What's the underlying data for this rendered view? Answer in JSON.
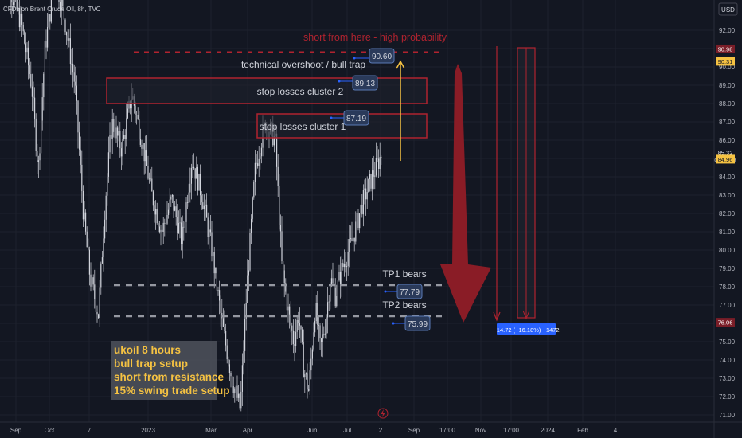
{
  "header": {
    "symbol_text": "CFDs on Brent Crude Oil, 8h, TVC",
    "currency": "USD"
  },
  "price_axis": {
    "ticks": [
      "92.00",
      "91.00",
      "90.00",
      "89.00",
      "88.00",
      "87.00",
      "86.00",
      "85.00",
      "84.00",
      "83.00",
      "82.00",
      "81.00",
      "80.00",
      "79.00",
      "78.00",
      "77.00",
      "76.00",
      "75.00",
      "74.00",
      "73.00",
      "72.00",
      "71.00"
    ],
    "tick_values": [
      92,
      91,
      90,
      89,
      88,
      87,
      86,
      85,
      84,
      83,
      82,
      81,
      80,
      79,
      78,
      77,
      76,
      75,
      74,
      73,
      72,
      71
    ],
    "labels": [
      {
        "text": "90.98",
        "value": 90.98,
        "bg": "#7a1e28",
        "fg": "#ffffff"
      },
      {
        "text": "90.31",
        "value": 90.31,
        "bg": "#f5c242",
        "fg": "#131722"
      },
      {
        "text": "85.32",
        "value": 85.32,
        "bg": "#131722",
        "fg": "#d1d4dc",
        "sub": "04:02:38"
      },
      {
        "text": "84.96",
        "value": 84.96,
        "bg": "#f5c242",
        "fg": "#131722"
      },
      {
        "text": "76.06",
        "value": 76.06,
        "bg": "#7a1e28",
        "fg": "#ffffff"
      }
    ]
  },
  "time_axis": {
    "ticks": [
      "Sep",
      "Oct",
      "7",
      "2023",
      "Mar",
      "Apr",
      "Jun",
      "Jul",
      "2",
      "Sep",
      "17:00",
      "Nov",
      "17:00",
      "2024",
      "Feb",
      "4"
    ]
  },
  "annotations": {
    "short_text": "short from here - high probability",
    "short_price": 90.98,
    "overshoot_text": "technical overshoot / bull trap",
    "price_90_60": "90.60",
    "zone2_label": "stop losses cluster 2",
    "zone2_price": "89.13",
    "zone1_label": "stop losses cluster 1",
    "zone1_price": "87.19",
    "tp1_label": "TP1 bears",
    "tp1_price": "77.79",
    "tp2_label": "TP2 bears",
    "tp2_price": "75.99",
    "measure_text": "−14.72 (−16.18%) −1472",
    "note_lines": [
      "ukoil 8 hours",
      "bull trap setup",
      "short from resistance",
      "15% swing trade setup"
    ]
  },
  "colors": {
    "background": "#131722",
    "grid": "#1e222d",
    "candles": "#d1d4dc",
    "zone_border": "#b0232f",
    "dotted_red": "#b0232f",
    "big_arrow": "#8a1c26",
    "arrow_yellow": "#f5c242",
    "dashed_gray": "#9598a1",
    "label_box": "#2a3a5a",
    "label_border": "#5a7ab5",
    "measure_box": "#2962ff",
    "note_box": "#4a4e58",
    "note_text": "#f5c242"
  },
  "chart_data": {
    "type": "candlestick",
    "title": "CFDs on Brent Crude Oil, 8h, TVC",
    "ylim": [
      70.6,
      93.6
    ],
    "x_ticks": [
      "Sep",
      "Oct",
      "7",
      "2023",
      "Mar",
      "Apr",
      "Jun",
      "Jul",
      "2",
      "Sep",
      "17:00",
      "Nov",
      "17:00",
      "2024",
      "Feb",
      "4"
    ],
    "close_path": [
      {
        "x": 0,
        "y": 96.5
      },
      {
        "x": 0.03,
        "y": 94.0
      },
      {
        "x": 0.06,
        "y": 92.3
      },
      {
        "x": 0.09,
        "y": 89.0
      },
      {
        "x": 0.11,
        "y": 84.4
      },
      {
        "x": 0.13,
        "y": 91.0
      },
      {
        "x": 0.16,
        "y": 95.0
      },
      {
        "x": 0.19,
        "y": 92.5
      },
      {
        "x": 0.22,
        "y": 89.0
      },
      {
        "x": 0.245,
        "y": 82.0
      },
      {
        "x": 0.265,
        "y": 78.5
      },
      {
        "x": 0.29,
        "y": 76.5
      },
      {
        "x": 0.31,
        "y": 82.5
      },
      {
        "x": 0.33,
        "y": 87.0
      },
      {
        "x": 0.36,
        "y": 85.5
      },
      {
        "x": 0.39,
        "y": 88.5
      },
      {
        "x": 0.42,
        "y": 86.0
      },
      {
        "x": 0.45,
        "y": 83.0
      },
      {
        "x": 0.48,
        "y": 81.0
      },
      {
        "x": 0.51,
        "y": 82.8
      },
      {
        "x": 0.54,
        "y": 80.5
      },
      {
        "x": 0.57,
        "y": 85.0
      },
      {
        "x": 0.6,
        "y": 83.0
      },
      {
        "x": 0.63,
        "y": 80.0
      },
      {
        "x": 0.66,
        "y": 76.0
      },
      {
        "x": 0.69,
        "y": 73.0
      },
      {
        "x": 0.715,
        "y": 71.3
      },
      {
        "x": 0.735,
        "y": 78.0
      },
      {
        "x": 0.76,
        "y": 84.5
      },
      {
        "x": 0.79,
        "y": 87.0
      },
      {
        "x": 0.82,
        "y": 86.0
      },
      {
        "x": 0.84,
        "y": 79.0
      },
      {
        "x": 0.86,
        "y": 76.5
      },
      {
        "x": 0.875,
        "y": 75.0
      },
      {
        "x": 0.89,
        "y": 76.5
      },
      {
        "x": 0.905,
        "y": 73.5
      },
      {
        "x": 0.92,
        "y": 72.3
      },
      {
        "x": 0.94,
        "y": 77.0
      },
      {
        "x": 0.955,
        "y": 74.5
      },
      {
        "x": 0.97,
        "y": 76.0
      },
      {
        "x": 0.985,
        "y": 78.5
      },
      {
        "x": 1.0,
        "y": 77.5
      },
      {
        "x": 1.02,
        "y": 79.0
      },
      {
        "x": 1.05,
        "y": 80.5
      },
      {
        "x": 1.08,
        "y": 82.5
      },
      {
        "x": 1.11,
        "y": 84.0
      },
      {
        "x": 1.14,
        "y": 85.32
      }
    ],
    "levels": [
      {
        "label": "short from here - high probability",
        "value": 90.98
      },
      {
        "label": "stop losses cluster 2",
        "value": 89.13
      },
      {
        "label": "stop losses cluster 1",
        "value": 87.19
      },
      {
        "label": "TP1 bears",
        "value": 77.79
      },
      {
        "label": "TP2 bears",
        "value": 75.99
      }
    ]
  }
}
